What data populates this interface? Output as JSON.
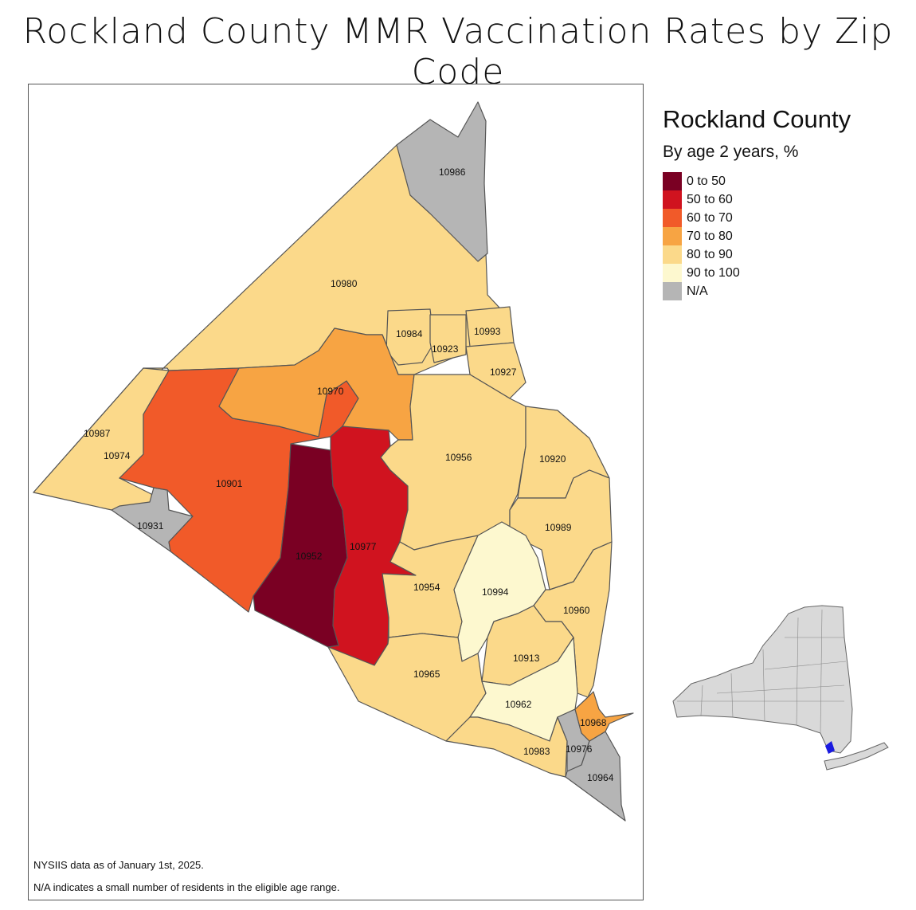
{
  "title": "Rockland County MMR Vaccination Rates by Zip Code",
  "legend": {
    "title": "Rockland County",
    "subtitle": "By age 2 years, %",
    "items": [
      {
        "label": "0 to 50",
        "color": "#7a0023"
      },
      {
        "label": "50 to 60",
        "color": "#d0131f"
      },
      {
        "label": "60 to 70",
        "color": "#f15a29"
      },
      {
        "label": "70 to 80",
        "color": "#f7a443"
      },
      {
        "label": "80 to 90",
        "color": "#fbd98a"
      },
      {
        "label": "90 to 100",
        "color": "#fdf8cf"
      },
      {
        "label": "N/A",
        "color": "#b5b5b5"
      }
    ]
  },
  "zip_labels": {
    "z10986": "10986",
    "z10980": "10980",
    "z10984": "10984",
    "z10993": "10993",
    "z10923": "10923",
    "z10927": "10927",
    "z10970": "10970",
    "z10987": "10987",
    "z10974": "10974",
    "z10901": "10901",
    "z10956": "10956",
    "z10920": "10920",
    "z10931": "10931",
    "z10989": "10989",
    "z10977": "10977",
    "z10952": "10952",
    "z10954": "10954",
    "z10994": "10994",
    "z10960": "10960",
    "z10913": "10913",
    "z10965": "10965",
    "z10962": "10962",
    "z10968": "10968",
    "z10976": "10976",
    "z10983": "10983",
    "z10964": "10964"
  },
  "notes": {
    "line1": "NYSIIS data as of January 1st, 2025.",
    "line2": "N/A indicates a small number of residents in the eligible age range."
  },
  "inset": {
    "highlight_color": "#1a1adf"
  }
}
